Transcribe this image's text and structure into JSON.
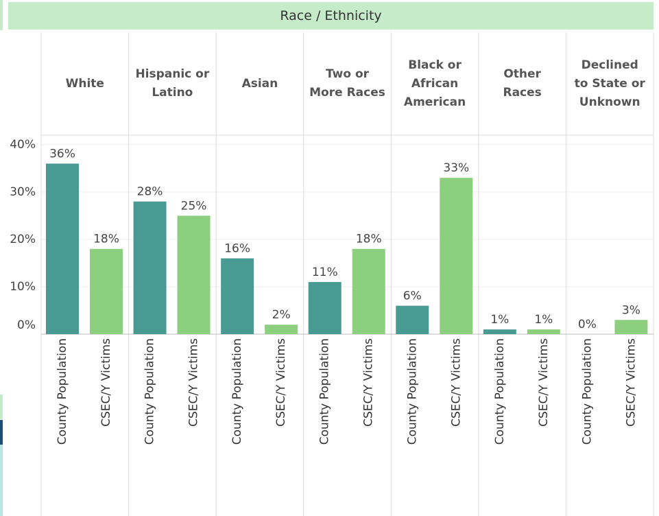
{
  "chart_data": {
    "type": "bar",
    "title": "Race / Ethnicity",
    "categories": [
      "White",
      "Hispanic or Latino",
      "Asian",
      "Two or More Races",
      "Black or African American",
      "Other Races",
      "Declined to State or Unknown"
    ],
    "series": [
      {
        "name": "County Population",
        "color": "#4a9a94",
        "values": [
          36,
          28,
          16,
          11,
          6,
          1,
          0
        ],
        "value_labels": [
          "36%",
          "28%",
          "16%",
          "11%",
          "6%",
          "1%",
          "0%"
        ]
      },
      {
        "name": "CSEC/Y Victims",
        "color": "#8ccf7e",
        "values": [
          18,
          25,
          2,
          18,
          33,
          1,
          3
        ],
        "value_labels": [
          "18%",
          "25%",
          "2%",
          "18%",
          "33%",
          "1%",
          "3%"
        ]
      }
    ],
    "ylim": [
      0,
      42
    ],
    "yticks": [
      {
        "value": 0,
        "label": "0%"
      },
      {
        "value": 10,
        "label": "10%"
      },
      {
        "value": 20,
        "label": "20%"
      },
      {
        "value": 30,
        "label": "30%"
      },
      {
        "value": 40,
        "label": "40%"
      }
    ],
    "grid": true
  }
}
